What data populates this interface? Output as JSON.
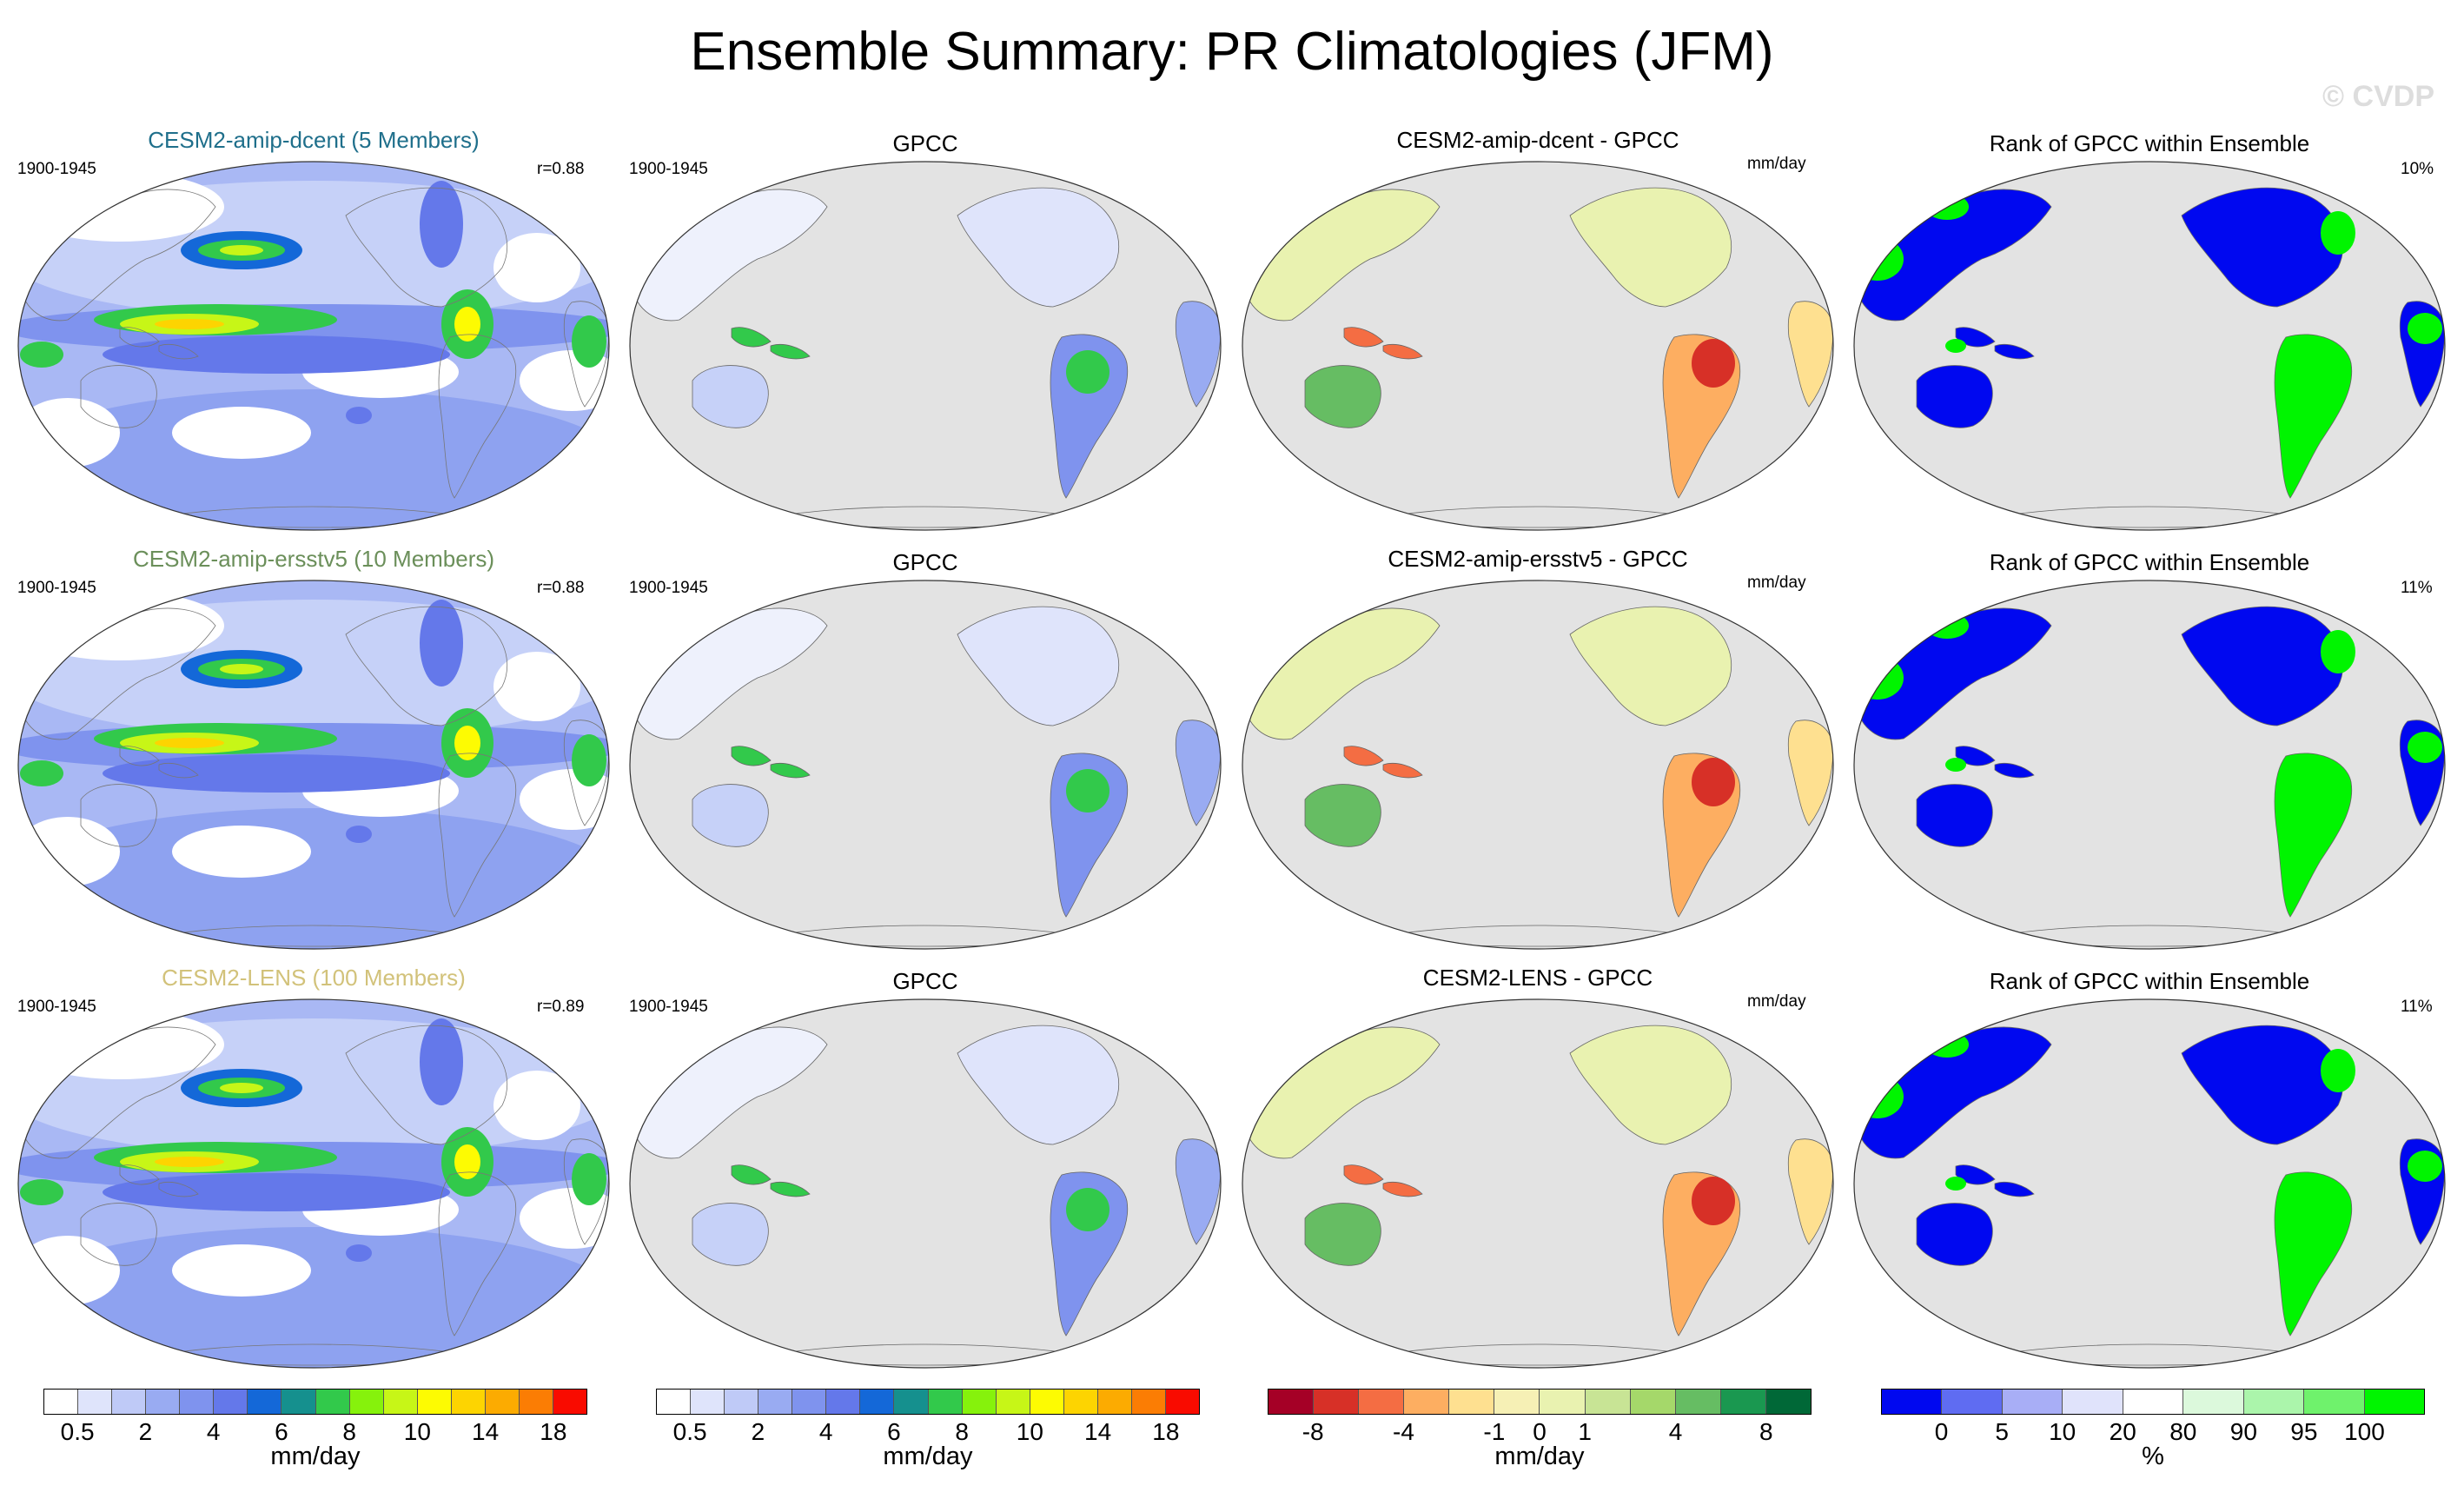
{
  "figure": {
    "title": "Ensemble Summary: PR Climatologies (JFM)",
    "watermark": "© CVDP"
  },
  "rows": [
    {
      "model_title": "CESM2-amip-dcent (5 Members)",
      "model_color": "#1f6f8b",
      "period_model": "1900-1945",
      "r_value": "r=0.88",
      "obs_title": "GPCC",
      "period_obs": "1900-1945",
      "diff_title": "CESM2-amip-dcent - GPCC",
      "diff_units": "mm/day",
      "rank_title": "Rank of GPCC within Ensemble",
      "rank_pct": "10%"
    },
    {
      "model_title": "CESM2-amip-ersstv5 (10 Members)",
      "model_color": "#6b8f5a",
      "period_model": "1900-1945",
      "r_value": "r=0.88",
      "obs_title": "GPCC",
      "period_obs": "1900-1945",
      "diff_title": "CESM2-amip-ersstv5 - GPCC",
      "diff_units": "mm/day",
      "rank_title": "Rank of GPCC within Ensemble",
      "rank_pct": "11%"
    },
    {
      "model_title": "CESM2-LENS (100 Members)",
      "model_color": "#d2c27a",
      "period_model": "1900-1945",
      "r_value": "r=0.89",
      "obs_title": "GPCC",
      "period_obs": "1900-1945",
      "diff_title": "CESM2-LENS - GPCC",
      "diff_units": "mm/day",
      "rank_title": "Rank of GPCC within Ensemble",
      "rank_pct": "11%"
    }
  ],
  "colorbars": {
    "precip": {
      "unit": "mm/day",
      "ticks": [
        "0.5",
        "2",
        "4",
        "6",
        "8",
        "10",
        "14",
        "18"
      ],
      "colors": [
        "#ffffff",
        "#dfe4fb",
        "#bfcaf7",
        "#99abf2",
        "#7f93ee",
        "#6478ea",
        "#1468d8",
        "#15908e",
        "#32c94b",
        "#86f20c",
        "#c7f617",
        "#fdfb02",
        "#fdd401",
        "#fcab01",
        "#fb7d04",
        "#f90b00"
      ]
    },
    "diff": {
      "unit": "mm/day",
      "ticks": [
        "-8",
        "-4",
        "-1",
        "0",
        "1",
        "4",
        "8"
      ],
      "colors": [
        "#a50026",
        "#d73027",
        "#f46d43",
        "#fdae61",
        "#fee090",
        "#f6f0b5",
        "#e9f2b0",
        "#c8e495",
        "#a5d86a",
        "#66bd63",
        "#1a9850",
        "#006837"
      ]
    },
    "rank": {
      "unit": "%",
      "ticks": [
        "0",
        "5",
        "10",
        "20",
        "80",
        "90",
        "95",
        "100"
      ],
      "colors": [
        "#0008f0",
        "#5f6cf2",
        "#a8aef6",
        "#e0e3fb",
        "#ffffff",
        "#dcf9dc",
        "#abf5ab",
        "#6ff26c",
        "#00f500"
      ]
    }
  }
}
